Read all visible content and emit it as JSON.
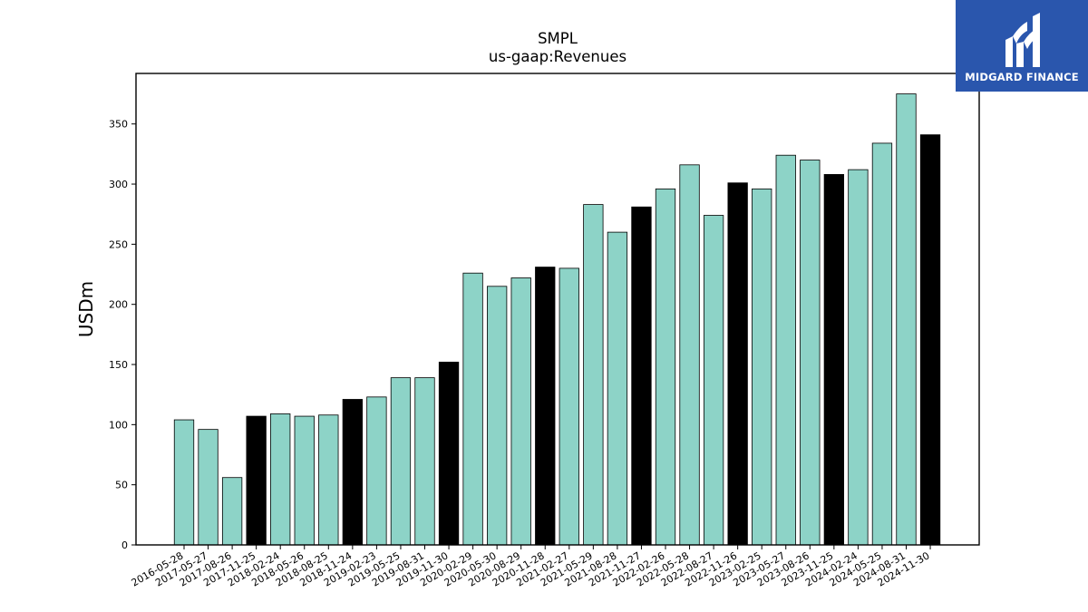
{
  "logo": {
    "text": "MIDGARD FINANCE",
    "background_color": "#2a56ad",
    "icon": "midgard-logo-icon"
  },
  "chart_data": {
    "type": "bar",
    "title": "SMPL",
    "subtitle": "us-gaap:Revenues",
    "ylabel": "USDm",
    "xlabel": "",
    "ylim": [
      0,
      392
    ],
    "yticks": [
      0,
      50,
      100,
      150,
      200,
      250,
      300,
      350
    ],
    "grid": false,
    "colors": {
      "quarter": "#8dd3c7",
      "fiscal_year_end": "#000000",
      "edge": "#000000"
    },
    "categories": [
      "2016-05-28",
      "2017-05-27",
      "2017-08-26",
      "2017-11-25",
      "2018-02-24",
      "2018-05-26",
      "2018-08-25",
      "2018-11-24",
      "2019-02-23",
      "2019-05-25",
      "2019-08-31",
      "2019-11-30",
      "2020-02-29",
      "2020-05-30",
      "2020-08-29",
      "2020-11-28",
      "2021-02-27",
      "2021-05-29",
      "2021-08-28",
      "2021-11-27",
      "2022-02-26",
      "2022-05-28",
      "2022-08-27",
      "2022-11-26",
      "2023-02-25",
      "2023-05-27",
      "2023-08-26",
      "2023-11-25",
      "2024-02-24",
      "2024-05-25",
      "2024-08-31",
      "2024-11-30"
    ],
    "values": [
      104,
      96,
      56,
      107,
      109,
      107,
      108,
      121,
      123,
      139,
      139,
      152,
      226,
      215,
      222,
      231,
      230,
      283,
      260,
      281,
      296,
      316,
      274,
      301,
      296,
      324,
      320,
      308,
      312,
      334,
      375,
      341
    ],
    "fiscal_year_end": [
      false,
      false,
      false,
      true,
      false,
      false,
      false,
      true,
      false,
      false,
      false,
      true,
      false,
      false,
      false,
      true,
      false,
      false,
      false,
      true,
      false,
      false,
      false,
      true,
      false,
      false,
      false,
      true,
      false,
      false,
      false,
      true
    ]
  }
}
